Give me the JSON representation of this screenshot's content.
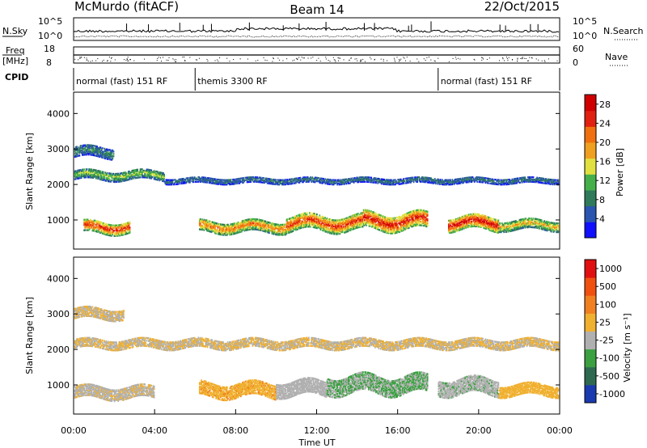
{
  "header": {
    "station": "McMurdo (fitACF)",
    "beam": "Beam 14",
    "date": "22/Oct/2015"
  },
  "noise_panel": {
    "left_label": "N.Sky",
    "right_label": "N.Search",
    "left_top_tick": "10^5",
    "left_bottom_tick": "10^0",
    "right_top_tick": "10^5",
    "right_bottom_tick": "10^0"
  },
  "freq_panel": {
    "left_label_line1": "Freq",
    "left_label_line2": "[MHz]",
    "right_label": "Nave",
    "left_top_tick": "18",
    "left_bottom_tick": "8",
    "right_top_tick": "60",
    "right_bottom_tick": "0"
  },
  "cpid_panel": {
    "label": "CPID",
    "segments": [
      {
        "name": "normal (fast) 151 RF",
        "start_hour": 0,
        "end_hour": 6
      },
      {
        "name": "themis 3300 RF",
        "start_hour": 6,
        "end_hour": 18
      },
      {
        "name": "normal (fast) 151 RF",
        "start_hour": 18,
        "end_hour": 24
      }
    ]
  },
  "x_axis": {
    "label": "Time UT",
    "ticks": [
      "00:00",
      "04:00",
      "08:00",
      "12:00",
      "16:00",
      "20:00",
      "00:00"
    ],
    "range_hours": [
      0,
      24
    ]
  },
  "chart_data": [
    {
      "type": "heatmap",
      "title": "Power",
      "ylabel": "Slant Range [km]",
      "xlabel": "Time UT",
      "ylim": [
        180,
        4600
      ],
      "y_ticks": [
        "1000",
        "2000",
        "3000",
        "4000"
      ],
      "colorbar": {
        "label": "Power [dB]",
        "ticks": [
          "4",
          "8",
          "12",
          "16",
          "20",
          "24",
          "28"
        ],
        "range": [
          0,
          30
        ],
        "colors": [
          "#1010ff",
          "#2a55b0",
          "#2f7a5a",
          "#45b04a",
          "#e0e040",
          "#f0a020",
          "#f07010",
          "#e02010",
          "#d00000"
        ]
      },
      "bands": [
        {
          "t_start": 0.5,
          "t_end": 2.8,
          "r_center": 780,
          "r_width": 330,
          "value": 26
        },
        {
          "t_start": 6.2,
          "t_end": 10.5,
          "r_center": 800,
          "r_width": 320,
          "value": 22
        },
        {
          "t_start": 10.5,
          "t_end": 14.3,
          "r_center": 900,
          "r_width": 420,
          "value": 25
        },
        {
          "t_start": 14.3,
          "t_end": 17.5,
          "r_center": 950,
          "r_width": 460,
          "value": 27
        },
        {
          "t_start": 18.5,
          "t_end": 21.0,
          "r_center": 900,
          "r_width": 380,
          "value": 28
        },
        {
          "t_start": 21.0,
          "t_end": 24.0,
          "r_center": 850,
          "r_width": 280,
          "value": 18
        },
        {
          "t_start": 0.0,
          "t_end": 4.5,
          "r_center": 2250,
          "r_width": 260,
          "value": 14
        },
        {
          "t_start": 4.5,
          "t_end": 24.0,
          "r_center": 2100,
          "r_width": 160,
          "value": 8
        },
        {
          "t_start": 0.0,
          "t_end": 2.0,
          "r_center": 2900,
          "r_width": 300,
          "value": 9
        }
      ]
    },
    {
      "type": "heatmap",
      "title": "Velocity",
      "ylabel": "Slant Range [km]",
      "xlabel": "Time UT",
      "ylim": [
        180,
        4600
      ],
      "y_ticks": [
        "1000",
        "2000",
        "3000",
        "4000"
      ],
      "colorbar": {
        "label": "Velocity [m s⁻¹]",
        "ticks": [
          "1000",
          "500",
          "100",
          "25",
          "-25",
          "-100",
          "-500",
          "-1000"
        ],
        "range": [
          -1200,
          1200
        ],
        "colors": [
          "#1a3ab0",
          "#2e6a50",
          "#3aa040",
          "#b0b0b0",
          "#f0b030",
          "#f08020",
          "#f05010",
          "#e01010"
        ]
      },
      "bands": [
        {
          "t_start": 0.0,
          "t_end": 4.0,
          "r_center": 780,
          "r_width": 340,
          "value": -60
        },
        {
          "t_start": 6.2,
          "t_end": 10.0,
          "r_center": 850,
          "r_width": 400,
          "value": 200
        },
        {
          "t_start": 10.0,
          "t_end": 12.5,
          "r_center": 900,
          "r_width": 420,
          "value": -150
        },
        {
          "t_start": 12.5,
          "t_end": 17.5,
          "r_center": 1000,
          "r_width": 500,
          "value": -300
        },
        {
          "t_start": 18.0,
          "t_end": 21.0,
          "r_center": 950,
          "r_width": 450,
          "value": -200
        },
        {
          "t_start": 21.0,
          "t_end": 24.0,
          "r_center": 850,
          "r_width": 320,
          "value": 150
        },
        {
          "t_start": 0.0,
          "t_end": 24.0,
          "r_center": 2150,
          "r_width": 260,
          "value": 0
        },
        {
          "t_start": 0.0,
          "t_end": 2.5,
          "r_center": 3000,
          "r_width": 300,
          "value": 0
        }
      ]
    }
  ]
}
